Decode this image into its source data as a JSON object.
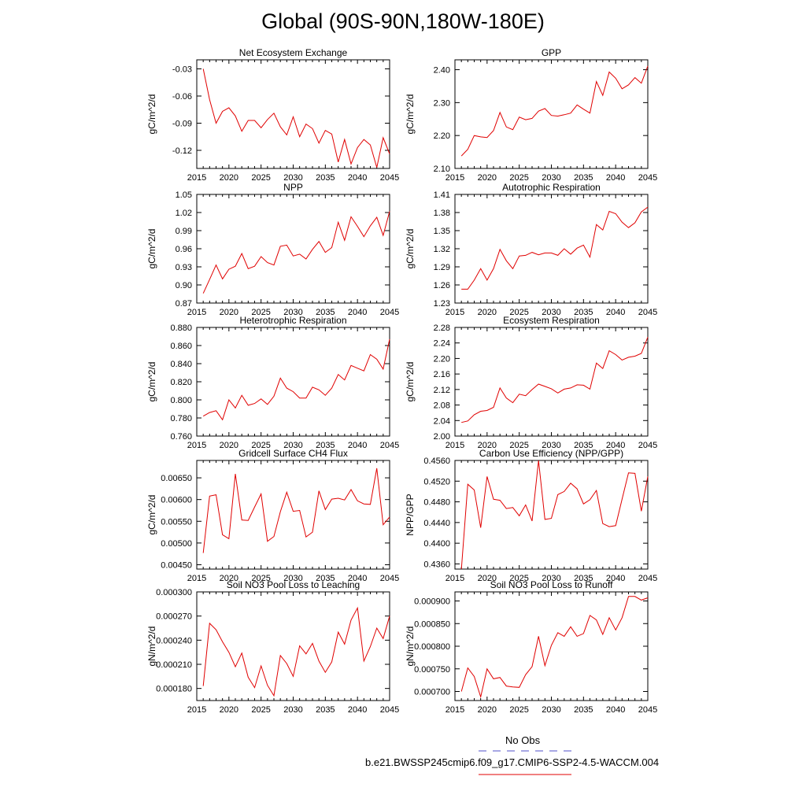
{
  "page": {
    "title": "Global (90S-90N,180W-180E)"
  },
  "legend": {
    "entries": [
      {
        "label": "No Obs",
        "color": "#5050c8",
        "dash": "dashed"
      },
      {
        "label": "b.e21.BWSSP245cmip6.f09_g17.CMIP6-SSP2-4.5-WACCM.004",
        "color": "#e00000",
        "dash": "solid"
      }
    ]
  },
  "chart_data": [
    {
      "type": "line",
      "title": "Net Ecosystem Exchange",
      "ylabel": "gC/m^2/d",
      "xlabel": "",
      "xlim": [
        2015,
        2045
      ],
      "xticks": [
        2015,
        2020,
        2025,
        2030,
        2035,
        2040,
        2045
      ],
      "ylim": [
        -0.14,
        -0.02
      ],
      "yticks": [
        -0.03,
        -0.06,
        -0.09,
        -0.12
      ],
      "ytick_labels": [
        "-0.03",
        "-0.06",
        "-0.09",
        "-0.12"
      ],
      "series": [
        {
          "name": "b.e21.BWSSP245cmip6.f09_g17.CMIP6-SSP2-4.5-WACCM.004",
          "color": "#e00000",
          "x": [
            2016,
            2017,
            2018,
            2019,
            2020,
            2021,
            2022,
            2023,
            2024,
            2025,
            2026,
            2027,
            2028,
            2029,
            2030,
            2031,
            2032,
            2033,
            2034,
            2035,
            2036,
            2037,
            2038,
            2039,
            2040,
            2041,
            2042,
            2043,
            2044,
            2045
          ],
          "values": [
            -0.03,
            -0.064,
            -0.09,
            -0.077,
            -0.073,
            -0.082,
            -0.099,
            -0.087,
            -0.087,
            -0.095,
            -0.086,
            -0.079,
            -0.094,
            -0.103,
            -0.083,
            -0.105,
            -0.091,
            -0.096,
            -0.112,
            -0.098,
            -0.102,
            -0.133,
            -0.108,
            -0.135,
            -0.117,
            -0.108,
            -0.114,
            -0.139,
            -0.106,
            -0.124
          ]
        }
      ]
    },
    {
      "type": "line",
      "title": "GPP",
      "ylabel": "gC/m^2/d",
      "xlabel": "",
      "xlim": [
        2015,
        2045
      ],
      "xticks": [
        2015,
        2020,
        2025,
        2030,
        2035,
        2040,
        2045
      ],
      "ylim": [
        2.1,
        2.43
      ],
      "yticks": [
        2.1,
        2.2,
        2.3,
        2.4
      ],
      "ytick_labels": [
        "2.10",
        "2.20",
        "2.30",
        "2.40"
      ],
      "series": [
        {
          "name": "b.e21.BWSSP245cmip6.f09_g17.CMIP6-SSP2-4.5-WACCM.004",
          "color": "#e00000",
          "x": [
            2016,
            2017,
            2018,
            2019,
            2020,
            2021,
            2022,
            2023,
            2024,
            2025,
            2026,
            2027,
            2028,
            2029,
            2030,
            2031,
            2032,
            2033,
            2034,
            2035,
            2036,
            2037,
            2038,
            2039,
            2040,
            2041,
            2042,
            2043,
            2044,
            2045
          ],
          "values": [
            2.138,
            2.158,
            2.2,
            2.196,
            2.194,
            2.215,
            2.27,
            2.226,
            2.218,
            2.256,
            2.248,
            2.252,
            2.274,
            2.282,
            2.261,
            2.259,
            2.263,
            2.268,
            2.293,
            2.28,
            2.268,
            2.364,
            2.322,
            2.393,
            2.374,
            2.342,
            2.354,
            2.376,
            2.359,
            2.411
          ]
        }
      ]
    },
    {
      "type": "line",
      "title": "NPP",
      "ylabel": "gC/m^2/d",
      "xlabel": "",
      "xlim": [
        2015,
        2045
      ],
      "xticks": [
        2015,
        2020,
        2025,
        2030,
        2035,
        2040,
        2045
      ],
      "ylim": [
        0.87,
        1.05
      ],
      "yticks": [
        0.87,
        0.9,
        0.93,
        0.96,
        0.99,
        1.02,
        1.05
      ],
      "ytick_labels": [
        "0.87",
        "0.90",
        "0.93",
        "0.96",
        "0.99",
        "1.02",
        "1.05"
      ],
      "series": [
        {
          "name": "b.e21.BWSSP245cmip6.f09_g17.CMIP6-SSP2-4.5-WACCM.004",
          "color": "#e00000",
          "x": [
            2016,
            2017,
            2018,
            2019,
            2020,
            2021,
            2022,
            2023,
            2024,
            2025,
            2026,
            2027,
            2028,
            2029,
            2030,
            2031,
            2032,
            2033,
            2034,
            2035,
            2036,
            2037,
            2038,
            2039,
            2040,
            2041,
            2042,
            2043,
            2044,
            2045
          ],
          "values": [
            0.886,
            0.909,
            0.933,
            0.91,
            0.926,
            0.931,
            0.952,
            0.927,
            0.931,
            0.947,
            0.937,
            0.933,
            0.964,
            0.966,
            0.948,
            0.951,
            0.943,
            0.959,
            0.972,
            0.954,
            0.962,
            1.004,
            0.974,
            1.013,
            0.997,
            0.98,
            0.998,
            1.012,
            0.982,
            1.022
          ]
        }
      ]
    },
    {
      "type": "line",
      "title": "Autotrophic Respiration",
      "ylabel": "gC/m^2/d",
      "xlabel": "",
      "xlim": [
        2015,
        2045
      ],
      "xticks": [
        2015,
        2020,
        2025,
        2030,
        2035,
        2040,
        2045
      ],
      "ylim": [
        1.23,
        1.41
      ],
      "yticks": [
        1.23,
        1.26,
        1.29,
        1.32,
        1.35,
        1.38,
        1.41
      ],
      "ytick_labels": [
        "1.23",
        "1.26",
        "1.29",
        "1.32",
        "1.35",
        "1.38",
        "1.41"
      ],
      "series": [
        {
          "name": "b.e21.BWSSP245cmip6.f09_g17.CMIP6-SSP2-4.5-WACCM.004",
          "color": "#e00000",
          "x": [
            2016,
            2017,
            2018,
            2019,
            2020,
            2021,
            2022,
            2023,
            2024,
            2025,
            2026,
            2027,
            2028,
            2029,
            2030,
            2031,
            2032,
            2033,
            2034,
            2035,
            2036,
            2037,
            2038,
            2039,
            2040,
            2041,
            2042,
            2043,
            2044,
            2045
          ],
          "values": [
            1.253,
            1.253,
            1.268,
            1.287,
            1.268,
            1.287,
            1.319,
            1.3,
            1.287,
            1.308,
            1.309,
            1.314,
            1.31,
            1.313,
            1.313,
            1.309,
            1.32,
            1.311,
            1.321,
            1.326,
            1.306,
            1.36,
            1.351,
            1.382,
            1.378,
            1.364,
            1.355,
            1.363,
            1.381,
            1.389
          ]
        }
      ]
    },
    {
      "type": "line",
      "title": "Heterotrophic Respiration",
      "ylabel": "gC/m^2/d",
      "xlabel": "",
      "xlim": [
        2015,
        2045
      ],
      "xticks": [
        2015,
        2020,
        2025,
        2030,
        2035,
        2040,
        2045
      ],
      "ylim": [
        0.76,
        0.88
      ],
      "yticks": [
        0.76,
        0.78,
        0.8,
        0.82,
        0.84,
        0.86,
        0.88
      ],
      "ytick_labels": [
        "0.760",
        "0.780",
        "0.800",
        "0.820",
        "0.840",
        "0.860",
        "0.880"
      ],
      "series": [
        {
          "name": "b.e21.BWSSP245cmip6.f09_g17.CMIP6-SSP2-4.5-WACCM.004",
          "color": "#e00000",
          "x": [
            2016,
            2017,
            2018,
            2019,
            2020,
            2021,
            2022,
            2023,
            2024,
            2025,
            2026,
            2027,
            2028,
            2029,
            2030,
            2031,
            2032,
            2033,
            2034,
            2035,
            2036,
            2037,
            2038,
            2039,
            2040,
            2041,
            2042,
            2043,
            2044,
            2045
          ],
          "values": [
            0.782,
            0.786,
            0.788,
            0.778,
            0.8,
            0.791,
            0.805,
            0.794,
            0.796,
            0.801,
            0.795,
            0.804,
            0.824,
            0.813,
            0.809,
            0.802,
            0.802,
            0.814,
            0.811,
            0.805,
            0.813,
            0.828,
            0.822,
            0.838,
            0.835,
            0.832,
            0.85,
            0.845,
            0.834,
            0.867
          ]
        }
      ]
    },
    {
      "type": "line",
      "title": "Ecosystem Respiration",
      "ylabel": "gC/m^2/d",
      "xlabel": "",
      "xlim": [
        2015,
        2045
      ],
      "xticks": [
        2015,
        2020,
        2025,
        2030,
        2035,
        2040,
        2045
      ],
      "ylim": [
        2.0,
        2.28
      ],
      "yticks": [
        2.0,
        2.04,
        2.08,
        2.12,
        2.16,
        2.2,
        2.24,
        2.28
      ],
      "ytick_labels": [
        "2.00",
        "2.04",
        "2.08",
        "2.12",
        "2.16",
        "2.20",
        "2.24",
        "2.28"
      ],
      "series": [
        {
          "name": "b.e21.BWSSP245cmip6.f09_g17.CMIP6-SSP2-4.5-WACCM.004",
          "color": "#e00000",
          "x": [
            2016,
            2017,
            2018,
            2019,
            2020,
            2021,
            2022,
            2023,
            2024,
            2025,
            2026,
            2027,
            2028,
            2029,
            2030,
            2031,
            2032,
            2033,
            2034,
            2035,
            2036,
            2037,
            2038,
            2039,
            2040,
            2041,
            2042,
            2043,
            2044,
            2045
          ],
          "values": [
            2.035,
            2.039,
            2.055,
            2.064,
            2.066,
            2.074,
            2.124,
            2.098,
            2.086,
            2.108,
            2.104,
            2.12,
            2.134,
            2.128,
            2.122,
            2.111,
            2.121,
            2.124,
            2.132,
            2.131,
            2.121,
            2.188,
            2.174,
            2.22,
            2.21,
            2.196,
            2.203,
            2.206,
            2.213,
            2.255
          ]
        }
      ]
    },
    {
      "type": "line",
      "title": "Gridcell Surface CH4 Flux",
      "ylabel": "gC/m^2/d",
      "xlabel": "",
      "xlim": [
        2015,
        2045
      ],
      "xticks": [
        2015,
        2020,
        2025,
        2030,
        2035,
        2040,
        2045
      ],
      "ylim": [
        0.0044,
        0.0069
      ],
      "yticks": [
        0.0045,
        0.005,
        0.0055,
        0.006,
        0.0065
      ],
      "ytick_labels": [
        "0.00450",
        "0.00500",
        "0.00550",
        "0.00600",
        "0.00650"
      ],
      "series": [
        {
          "name": "b.e21.BWSSP245cmip6.f09_g17.CMIP6-SSP2-4.5-WACCM.004",
          "color": "#e00000",
          "x": [
            2016,
            2017,
            2018,
            2019,
            2020,
            2021,
            2022,
            2023,
            2024,
            2025,
            2026,
            2027,
            2028,
            2029,
            2030,
            2031,
            2032,
            2033,
            2034,
            2035,
            2036,
            2037,
            2038,
            2039,
            2040,
            2041,
            2042,
            2043,
            2044,
            2045
          ],
          "values": [
            0.00477,
            0.00608,
            0.00611,
            0.00519,
            0.0051,
            0.00659,
            0.00553,
            0.00552,
            0.00583,
            0.00613,
            0.00504,
            0.00515,
            0.00572,
            0.00617,
            0.00573,
            0.00575,
            0.00514,
            0.00525,
            0.0062,
            0.00577,
            0.00601,
            0.00603,
            0.00599,
            0.00623,
            0.00597,
            0.0059,
            0.00589,
            0.00672,
            0.00542,
            0.0056
          ]
        }
      ]
    },
    {
      "type": "line",
      "title": "Carbon Use Efficiency (NPP/GPP)",
      "ylabel": "NPP/GPP",
      "xlabel": "",
      "xlim": [
        2015,
        2045
      ],
      "xticks": [
        2015,
        2020,
        2025,
        2030,
        2035,
        2040,
        2045
      ],
      "ylim": [
        0.435,
        0.456
      ],
      "yticks": [
        0.436,
        0.44,
        0.444,
        0.448,
        0.452,
        0.456
      ],
      "ytick_labels": [
        "0.4360",
        "0.4400",
        "0.4440",
        "0.4480",
        "0.4520",
        "0.4560"
      ],
      "series": [
        {
          "name": "b.e21.BWSSP245cmip6.f09_g17.CMIP6-SSP2-4.5-WACCM.004",
          "color": "#e00000",
          "x": [
            2016,
            2017,
            2018,
            2019,
            2020,
            2021,
            2022,
            2023,
            2024,
            2025,
            2026,
            2027,
            2028,
            2029,
            2030,
            2031,
            2032,
            2033,
            2034,
            2035,
            2036,
            2037,
            2038,
            2039,
            2040,
            2041,
            2042,
            2043,
            2044,
            2045
          ],
          "values": [
            0.435,
            0.4514,
            0.4503,
            0.443,
            0.4529,
            0.4485,
            0.4483,
            0.4467,
            0.4469,
            0.4453,
            0.4474,
            0.4443,
            0.456,
            0.4446,
            0.4448,
            0.4494,
            0.45,
            0.4516,
            0.4505,
            0.4476,
            0.4484,
            0.4502,
            0.4438,
            0.4432,
            0.4434,
            0.4485,
            0.4536,
            0.4535,
            0.4462,
            0.4529
          ]
        }
      ]
    },
    {
      "type": "line",
      "title": "Soil NO3 Pool Loss to Leaching",
      "ylabel": "gN/m^2/d",
      "xlabel": "",
      "xlim": [
        2015,
        2045
      ],
      "xticks": [
        2015,
        2020,
        2025,
        2030,
        2035,
        2040,
        2045
      ],
      "ylim": [
        0.000165,
        0.0003
      ],
      "yticks": [
        0.00018,
        0.00021,
        0.00024,
        0.00027,
        0.0003
      ],
      "ytick_labels": [
        "0.000180",
        "0.000210",
        "0.000240",
        "0.000270",
        "0.000300"
      ],
      "series": [
        {
          "name": "b.e21.BWSSP245cmip6.f09_g17.CMIP6-SSP2-4.5-WACCM.004",
          "color": "#e00000",
          "x": [
            2016,
            2017,
            2018,
            2019,
            2020,
            2021,
            2022,
            2023,
            2024,
            2025,
            2026,
            2027,
            2028,
            2029,
            2030,
            2031,
            2032,
            2033,
            2034,
            2035,
            2036,
            2037,
            2038,
            2039,
            2040,
            2041,
            2042,
            2043,
            2044,
            2045
          ],
          "values": [
            0.000183,
            0.000261,
            0.000253,
            0.000238,
            0.000225,
            0.000207,
            0.000224,
            0.000194,
            0.000181,
            0.000208,
            0.000184,
            0.000171,
            0.000221,
            0.000211,
            0.000195,
            0.000233,
            0.000223,
            0.000236,
            0.000214,
            0.0002,
            0.000213,
            0.00025,
            0.000235,
            0.000265,
            0.00028,
            0.000214,
            0.000232,
            0.000255,
            0.000242,
            0.00027
          ]
        }
      ]
    },
    {
      "type": "line",
      "title": "Soil NO3 Pool Loss to Runoff",
      "ylabel": "gN/m^2/d",
      "xlabel": "",
      "xlim": [
        2015,
        2045
      ],
      "xticks": [
        2015,
        2020,
        2025,
        2030,
        2035,
        2040,
        2045
      ],
      "ylim": [
        0.00068,
        0.00092
      ],
      "yticks": [
        0.0007,
        0.00075,
        0.0008,
        0.00085,
        0.0009
      ],
      "ytick_labels": [
        "0.000700",
        "0.000750",
        "0.000800",
        "0.000850",
        "0.000900"
      ],
      "series": [
        {
          "name": "b.e21.BWSSP245cmip6.f09_g17.CMIP6-SSP2-4.5-WACCM.004",
          "color": "#e00000",
          "x": [
            2016,
            2017,
            2018,
            2019,
            2020,
            2021,
            2022,
            2023,
            2024,
            2025,
            2026,
            2027,
            2028,
            2029,
            2030,
            2031,
            2032,
            2033,
            2034,
            2035,
            2036,
            2037,
            2038,
            2039,
            2040,
            2041,
            2042,
            2043,
            2044,
            2045
          ],
          "values": [
            0.0007,
            0.000752,
            0.000733,
            0.000688,
            0.00075,
            0.000728,
            0.000731,
            0.000712,
            0.00071,
            0.000709,
            0.000737,
            0.000755,
            0.000822,
            0.000757,
            0.000802,
            0.00083,
            0.000822,
            0.000843,
            0.000822,
            0.000828,
            0.000868,
            0.000858,
            0.000826,
            0.000863,
            0.000836,
            0.000863,
            0.00091,
            0.00091,
            0.000902,
            0.000907
          ]
        }
      ]
    }
  ]
}
